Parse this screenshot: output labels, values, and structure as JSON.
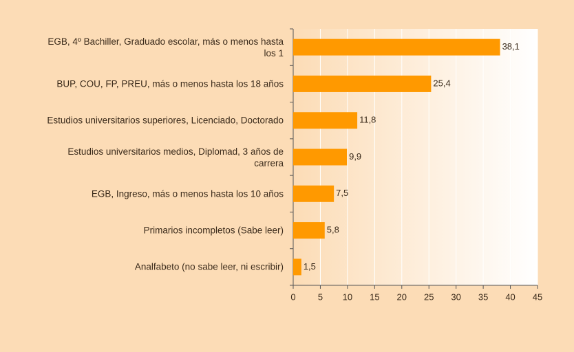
{
  "chart_data": {
    "type": "bar",
    "orientation": "horizontal",
    "categories": [
      "EGB, 4º Bachiller, Graduado escolar, más o menos hasta los 1",
      "BUP, COU, FP, PREU, más o menos hasta los 18 años",
      "Estudios universitarios superiores, Licenciado, Doctorado",
      "Estudios universitarios medios, Diplomad, 3 años de carrera",
      "EGB, Ingreso, más o menos hasta los 10 años",
      "Primarios incompletos (Sabe leer)",
      "Analfabeto (no sabe leer, ni escribir)"
    ],
    "values": [
      38.1,
      25.4,
      11.8,
      9.9,
      7.5,
      5.8,
      1.5
    ],
    "value_labels": [
      "38,1",
      "25,4",
      "11,8",
      "9,9",
      "7,5",
      "5,8",
      "1,5"
    ],
    "color": "#ff9900",
    "xlim": [
      0,
      45
    ],
    "xticks": [
      0,
      5,
      10,
      15,
      20,
      25,
      30,
      35,
      40,
      45
    ],
    "grid": true
  }
}
